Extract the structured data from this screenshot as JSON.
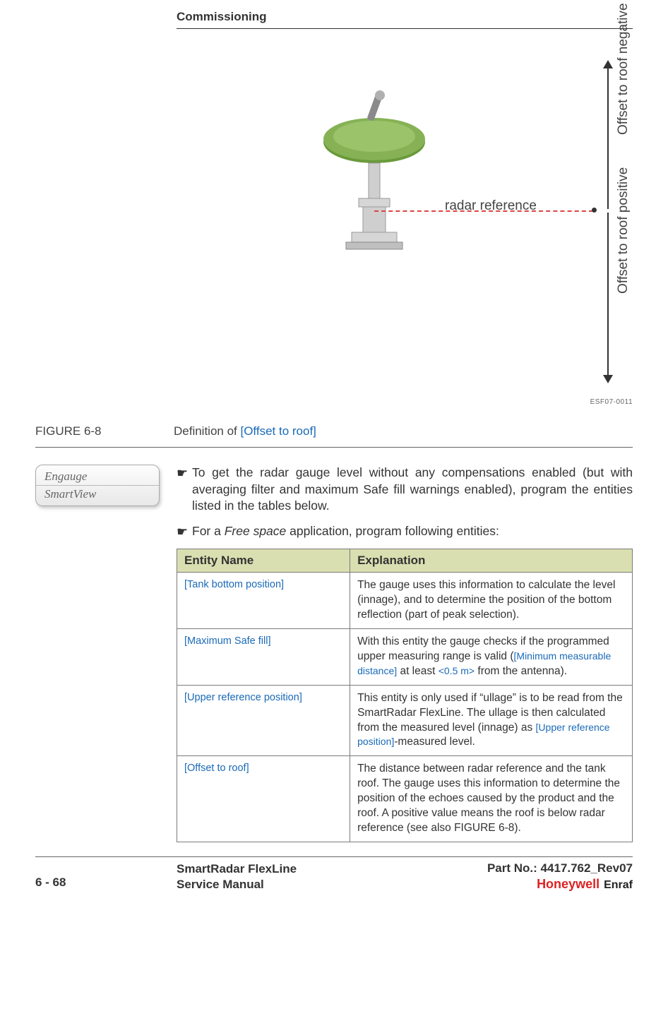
{
  "header": {
    "section_title": "Commissioning"
  },
  "figure": {
    "radar_reference_label": "radar reference",
    "offset_negative_label": "Offset to roof negative",
    "offset_positive_label": "Offset to roof positive",
    "figure_id": "ESF07-0011",
    "figure_number": "FIGURE  6-8",
    "definition_prefix": "Definition of ",
    "definition_term": "[Offset to roof]",
    "device_body_color": "#6a9a3a",
    "device_body_dark": "#4d6f2b",
    "mount_color": "#cfcfcf",
    "mount_dark": "#a8a8a8",
    "ref_line_color": "#d44444"
  },
  "badge": {
    "line1": "Engauge",
    "line2": "SmartView"
  },
  "bullets": [
    {
      "text": "To get the radar gauge level without any compensations enabled (but with averaging filter and maximum Safe fill warnings enabled), program the entities listed in the tables below."
    },
    {
      "prefix": "For a ",
      "italic": "Free space",
      "suffix": " application, program following entities:"
    }
  ],
  "table": {
    "headers": [
      "Entity Name",
      "Explanation"
    ],
    "rows": [
      {
        "entity": "[Tank bottom position]",
        "explanation_parts": [
          {
            "t": "The gauge uses this information to calculate the level (innage), and to determine the position of the bottom reflection (part of peak selection)."
          }
        ]
      },
      {
        "entity": "[Maximum Safe fill]",
        "explanation_parts": [
          {
            "t": "With this entity the gauge checks if the programmed upper measuring range is valid ("
          },
          {
            "t": "[Minimum measurable distance]",
            "blue": true
          },
          {
            "t": " at least "
          },
          {
            "t": "<0.5 m>",
            "blue": true
          },
          {
            "t": " from the antenna)."
          }
        ]
      },
      {
        "entity": "[Upper reference position]",
        "explanation_parts": [
          {
            "t": "This entity is only used if “ullage” is to be read from the SmartRadar FlexLine. The ullage is then calculated from the measured level (innage) as "
          },
          {
            "t": "[Upper reference position]",
            "blue": true
          },
          {
            "t": "-measured level."
          }
        ]
      },
      {
        "entity": "[Offset to roof]",
        "explanation_parts": [
          {
            "t": "The distance between radar reference and the tank roof. The gauge uses this information to determine the position of the echoes caused by the product and the roof. A positive value means the roof is below radar reference (see also FIGURE 6-8)."
          }
        ]
      }
    ]
  },
  "footer": {
    "page_number": "6 - 68",
    "product_line1": "SmartRadar FlexLine",
    "product_line2": "Service Manual",
    "part_no": "Part No.: 4417.762_Rev07",
    "logo_honeywell": "Honeywell",
    "logo_enraf": "Enraf"
  },
  "colors": {
    "header_bg": "#d9dfb0",
    "border": "#7a7a7a",
    "link_blue": "#1a6ab8",
    "text": "#333333"
  }
}
